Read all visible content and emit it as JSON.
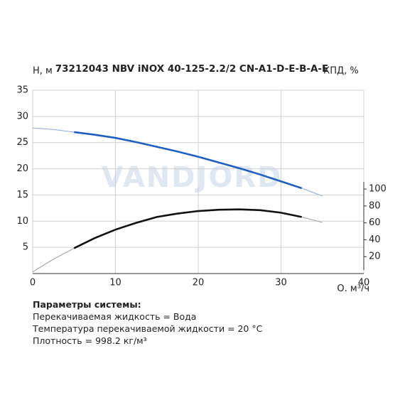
{
  "chart_data": {
    "type": "line",
    "title": "73212043 NBV iNOX 40-125-2.2/2 CN-A1-D-E-B-A-E",
    "watermark": "VANDJORD",
    "ylabel": "H, м",
    "y2label": "КПД, %",
    "xlabel": "Q, м³/ч",
    "x": [
      0,
      2.5,
      5,
      7.5,
      10,
      12.5,
      15,
      17.5,
      20,
      22.5,
      25,
      27.5,
      30,
      32.5,
      35
    ],
    "operating_range": [
      5,
      32.5
    ],
    "series": [
      {
        "name": "H",
        "color": "#1f5fbf",
        "thin_color": "#8fa9d6",
        "values": [
          27.8,
          27.5,
          27.0,
          26.5,
          25.9,
          25.1,
          24.2,
          23.3,
          22.3,
          21.2,
          20.1,
          18.9,
          17.6,
          16.3,
          14.8
        ]
      },
      {
        "name": "КПД",
        "color": "#111111",
        "thin_color": "#999999",
        "axis": "y2",
        "values": [
          2,
          17,
          30,
          42,
          52,
          60,
          67,
          71,
          74,
          75.5,
          76,
          75,
          72,
          67,
          60.5
        ]
      }
    ],
    "xlim": [
      0,
      40
    ],
    "xticks": [
      0,
      10,
      20,
      30,
      40
    ],
    "ylim": [
      0,
      35
    ],
    "yticks": [
      5,
      10,
      15,
      20,
      25,
      30,
      35
    ],
    "y2lim": [
      0,
      217
    ],
    "y2ticks": [
      20,
      40,
      60,
      80,
      100
    ],
    "grid": true
  },
  "info": {
    "heading": "Параметры системы:",
    "lines": [
      "Перекачиваемая жидкость = Вода",
      "Температура перекачиваемой жидкости = 20 °C",
      "Плотность = 998.2 кг/м³"
    ]
  }
}
